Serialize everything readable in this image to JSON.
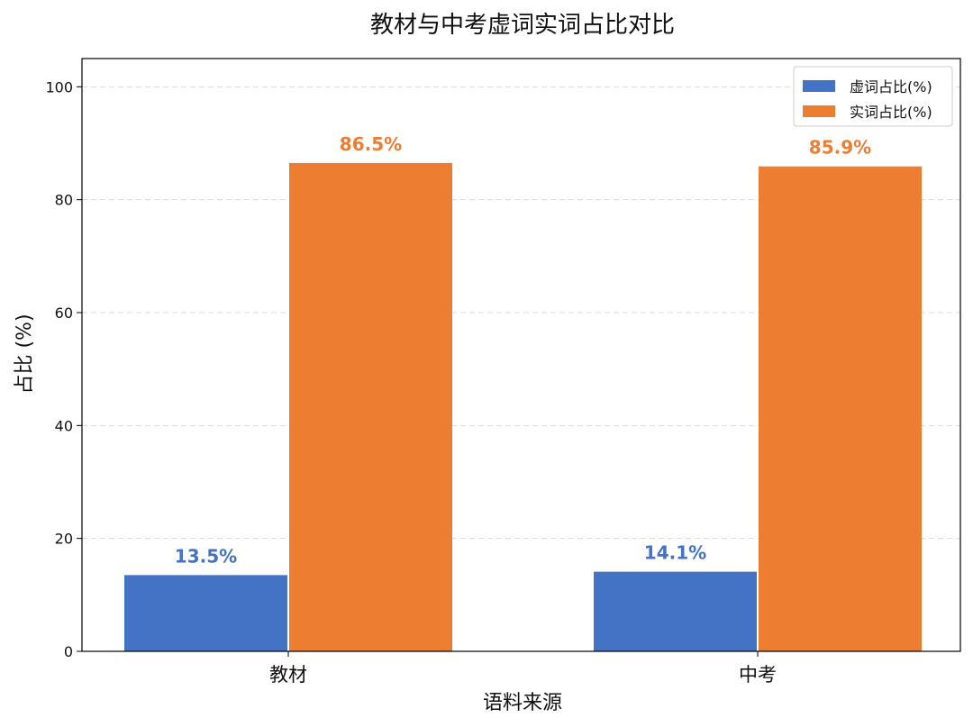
{
  "chart_data": {
    "type": "bar",
    "title": "教材与中考虚词实词占比对比",
    "xlabel": "语料来源",
    "ylabel": "占比 (%)",
    "ylim": [
      0,
      105
    ],
    "yticks": [
      0,
      20,
      40,
      60,
      80,
      100
    ],
    "grid": true,
    "legend_position": "top-right",
    "categories": [
      "教材",
      "中考"
    ],
    "series": [
      {
        "name": "虚词占比(%)",
        "color": "#4472C4",
        "values": [
          13.5,
          14.1
        ],
        "labels": [
          "13.5%",
          "14.1%"
        ]
      },
      {
        "name": "实词占比(%)",
        "color": "#ED7D31",
        "values": [
          86.5,
          85.9
        ],
        "labels": [
          "86.5%",
          "85.9%"
        ]
      }
    ]
  }
}
